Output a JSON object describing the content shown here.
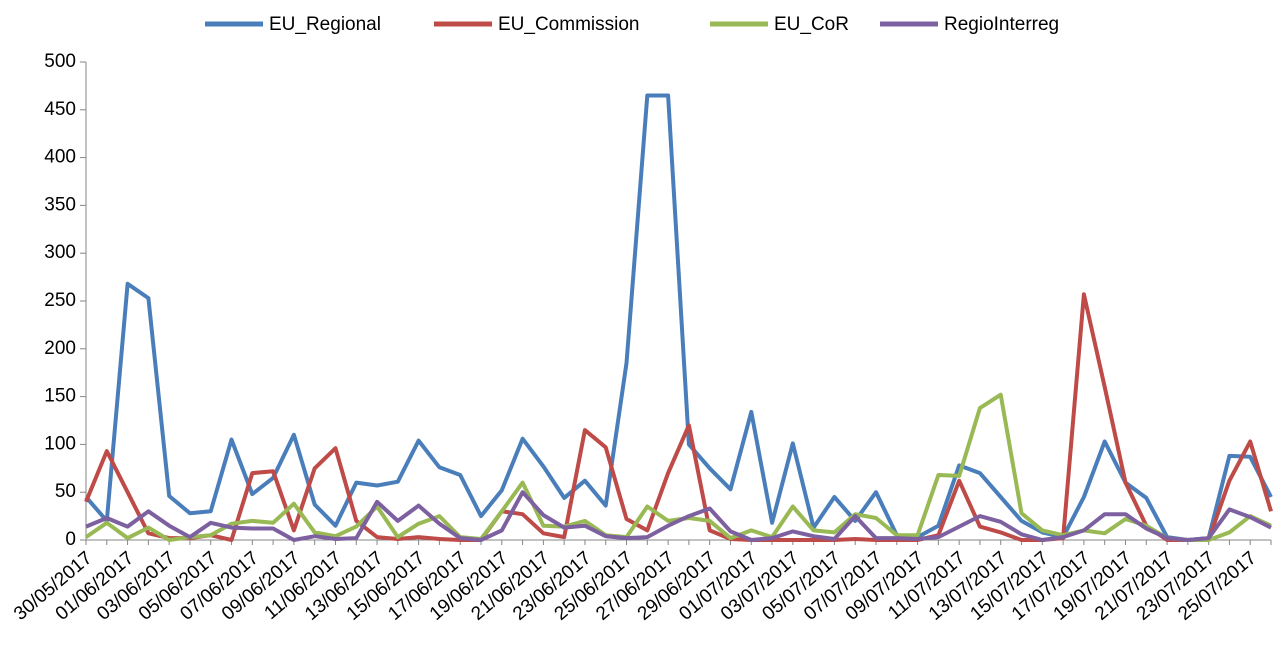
{
  "chart_data": {
    "type": "line",
    "categories": [
      "30/05/2017",
      null,
      "01/06/2017",
      null,
      "03/06/2017",
      null,
      "05/06/2017",
      null,
      "07/06/2017",
      null,
      "09/06/2017",
      null,
      "11/06/2017",
      null,
      "13/06/2017",
      null,
      "15/06/2017",
      null,
      "17/06/2017",
      null,
      "19/06/2017",
      null,
      "21/06/2017",
      null,
      "23/06/2017",
      null,
      "25/06/2017",
      null,
      "27/06/2017",
      null,
      "29/06/2017",
      null,
      "01/07/2017",
      null,
      "03/07/2017",
      null,
      "05/07/2017",
      null,
      "07/07/2017",
      null,
      "09/07/2017",
      null,
      "11/07/2017",
      null,
      "13/07/2017",
      null,
      "15/07/2017",
      null,
      "17/07/2017",
      null,
      "19/07/2017",
      null,
      "21/07/2017",
      null,
      "23/07/2017",
      null,
      "25/07/2017",
      null
    ],
    "series": [
      {
        "name": "EU_Regional",
        "color": "#4a7ebb",
        "values": [
          45,
          20,
          268,
          253,
          46,
          28,
          30,
          105,
          48,
          65,
          110,
          37,
          15,
          60,
          57,
          61,
          104,
          76,
          68,
          25,
          52,
          106,
          77,
          44,
          62,
          36,
          185,
          465,
          465,
          100,
          75,
          53,
          134,
          18,
          101,
          13,
          45,
          20,
          50,
          5,
          3,
          15,
          78,
          70,
          45,
          20,
          8,
          3,
          45,
          103,
          60,
          44,
          3,
          0,
          2,
          88,
          87,
          45
        ]
      },
      {
        "name": "EU_Commission",
        "color": "#be4b48",
        "values": [
          40,
          93,
          50,
          7,
          2,
          2,
          5,
          0,
          70,
          72,
          10,
          75,
          96,
          20,
          3,
          1,
          3,
          1,
          0,
          0,
          30,
          27,
          7,
          3,
          115,
          97,
          22,
          10,
          70,
          120,
          10,
          1,
          0,
          0,
          0,
          0,
          0,
          1,
          0,
          0,
          0,
          5,
          62,
          14,
          8,
          0,
          0,
          2,
          257,
          160,
          60,
          15,
          0,
          0,
          0,
          62,
          103,
          30
        ]
      },
      {
        "name": "EU_CoR",
        "color": "#98b954",
        "values": [
          3,
          18,
          2,
          13,
          0,
          3,
          5,
          17,
          20,
          18,
          38,
          8,
          4,
          14,
          35,
          3,
          17,
          25,
          3,
          1,
          30,
          60,
          15,
          14,
          20,
          5,
          3,
          35,
          20,
          23,
          20,
          2,
          10,
          3,
          35,
          10,
          8,
          27,
          23,
          5,
          5,
          68,
          67,
          138,
          152,
          28,
          10,
          5,
          10,
          7,
          22,
          15,
          2,
          0,
          0,
          8,
          25,
          15
        ]
      },
      {
        "name": "RegioInterreg",
        "color": "#7d60a0",
        "values": [
          14,
          23,
          14,
          30,
          15,
          3,
          18,
          13,
          12,
          12,
          0,
          4,
          1,
          2,
          40,
          20,
          36,
          17,
          2,
          0,
          10,
          50,
          26,
          13,
          15,
          4,
          2,
          3,
          15,
          25,
          33,
          9,
          0,
          2,
          9,
          4,
          1,
          25,
          2,
          2,
          1,
          3,
          14,
          25,
          19,
          6,
          0,
          3,
          10,
          27,
          27,
          12,
          2,
          0,
          2,
          32,
          24,
          13
        ]
      }
    ],
    "ylim": [
      0,
      500
    ],
    "yticks": [
      0,
      50,
      100,
      150,
      200,
      250,
      300,
      350,
      400,
      450,
      500
    ],
    "grid": false
  }
}
